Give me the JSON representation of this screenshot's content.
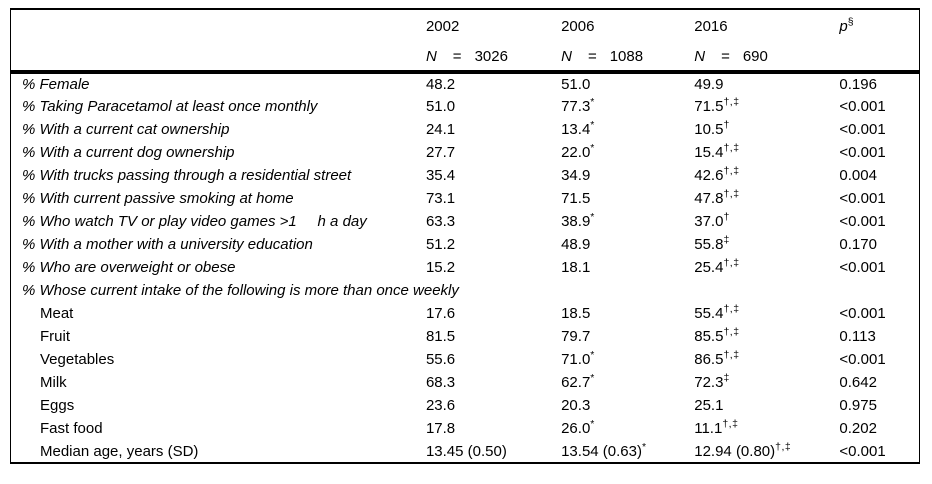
{
  "header": {
    "years": [
      "2002",
      "2006",
      "2016"
    ],
    "n_label": "N",
    "equals": "=",
    "n_values": [
      "3026",
      "1088",
      "690"
    ],
    "p_label": "p",
    "p_sup": "§"
  },
  "rows": [
    {
      "label": "% Female",
      "italic": true,
      "indent": false,
      "span": false,
      "values": [
        {
          "t": "48.2",
          "s": ""
        },
        {
          "t": "51.0",
          "s": ""
        },
        {
          "t": "49.9",
          "s": ""
        }
      ],
      "p": "0.196"
    },
    {
      "label": "% Taking Paracetamol at least once monthly",
      "italic": true,
      "indent": false,
      "span": false,
      "values": [
        {
          "t": "51.0",
          "s": ""
        },
        {
          "t": "77.3",
          "s": "*"
        },
        {
          "t": "71.5",
          "s": "†,‡"
        }
      ],
      "p": "<0.001"
    },
    {
      "label": "% With a current cat ownership",
      "italic": true,
      "indent": false,
      "span": false,
      "values": [
        {
          "t": "24.1",
          "s": ""
        },
        {
          "t": "13.4",
          "s": "*"
        },
        {
          "t": "10.5",
          "s": "†"
        }
      ],
      "p": "<0.001"
    },
    {
      "label": "% With a current dog ownership",
      "italic": true,
      "indent": false,
      "span": false,
      "values": [
        {
          "t": "27.7",
          "s": ""
        },
        {
          "t": "22.0",
          "s": "*"
        },
        {
          "t": "15.4",
          "s": "†,‡"
        }
      ],
      "p": "<0.001"
    },
    {
      "label": "% With trucks passing through a residential street",
      "italic": true,
      "indent": false,
      "span": false,
      "values": [
        {
          "t": "35.4",
          "s": ""
        },
        {
          "t": "34.9",
          "s": ""
        },
        {
          "t": "42.6",
          "s": "†,‡"
        }
      ],
      "p": "0.004"
    },
    {
      "label": "% With current passive smoking at home",
      "italic": true,
      "indent": false,
      "span": false,
      "values": [
        {
          "t": "73.1",
          "s": ""
        },
        {
          "t": "71.5",
          "s": ""
        },
        {
          "t": "47.8",
          "s": "†,‡"
        }
      ],
      "p": "<0.001"
    },
    {
      "label": "% Who watch TV or play video games >1     h a day",
      "italic": true,
      "indent": false,
      "span": false,
      "values": [
        {
          "t": "63.3",
          "s": ""
        },
        {
          "t": "38.9",
          "s": "*"
        },
        {
          "t": "37.0",
          "s": "†"
        }
      ],
      "p": "<0.001"
    },
    {
      "label": "% With a mother with a university education",
      "italic": true,
      "indent": false,
      "span": false,
      "values": [
        {
          "t": "51.2",
          "s": ""
        },
        {
          "t": "48.9",
          "s": ""
        },
        {
          "t": "55.8",
          "s": "‡"
        }
      ],
      "p": "0.170"
    },
    {
      "label": "% Who are overweight or obese",
      "italic": true,
      "indent": false,
      "span": false,
      "values": [
        {
          "t": "15.2",
          "s": ""
        },
        {
          "t": "18.1",
          "s": ""
        },
        {
          "t": "25.4",
          "s": "†,‡"
        }
      ],
      "p": "<0.001"
    },
    {
      "label": "% Whose current intake of the following is more than once weekly",
      "italic": true,
      "indent": false,
      "span": true,
      "values": [],
      "p": ""
    },
    {
      "label": "Meat",
      "italic": false,
      "indent": true,
      "span": false,
      "values": [
        {
          "t": "17.6",
          "s": ""
        },
        {
          "t": "18.5",
          "s": ""
        },
        {
          "t": "55.4",
          "s": "†,‡"
        }
      ],
      "p": "<0.001"
    },
    {
      "label": "Fruit",
      "italic": false,
      "indent": true,
      "span": false,
      "values": [
        {
          "t": "81.5",
          "s": ""
        },
        {
          "t": "79.7",
          "s": ""
        },
        {
          "t": "85.5",
          "s": "†,‡"
        }
      ],
      "p": "0.113"
    },
    {
      "label": "Vegetables",
      "italic": false,
      "indent": true,
      "span": false,
      "values": [
        {
          "t": "55.6",
          "s": ""
        },
        {
          "t": "71.0",
          "s": "*"
        },
        {
          "t": "86.5",
          "s": "†,‡"
        }
      ],
      "p": "<0.001"
    },
    {
      "label": "Milk",
      "italic": false,
      "indent": true,
      "span": false,
      "values": [
        {
          "t": "68.3",
          "s": ""
        },
        {
          "t": "62.7",
          "s": "*"
        },
        {
          "t": "72.3",
          "s": "‡"
        }
      ],
      "p": "0.642"
    },
    {
      "label": "Eggs",
      "italic": false,
      "indent": true,
      "span": false,
      "values": [
        {
          "t": "23.6",
          "s": ""
        },
        {
          "t": "20.3",
          "s": ""
        },
        {
          "t": "25.1",
          "s": ""
        }
      ],
      "p": "0.975"
    },
    {
      "label": "Fast food",
      "italic": false,
      "indent": true,
      "span": false,
      "values": [
        {
          "t": "17.8",
          "s": ""
        },
        {
          "t": "26.0",
          "s": "*"
        },
        {
          "t": "11.1",
          "s": "†,‡"
        }
      ],
      "p": "0.202"
    },
    {
      "label": "Median age, years (SD)",
      "italic": false,
      "indent": true,
      "span": false,
      "values": [
        {
          "t": "13.45 (0.50)",
          "s": ""
        },
        {
          "t": "13.54 (0.63)",
          "s": "*"
        },
        {
          "t": "12.94 (0.80)",
          "s": "†,‡"
        }
      ],
      "p": "<0.001"
    }
  ]
}
